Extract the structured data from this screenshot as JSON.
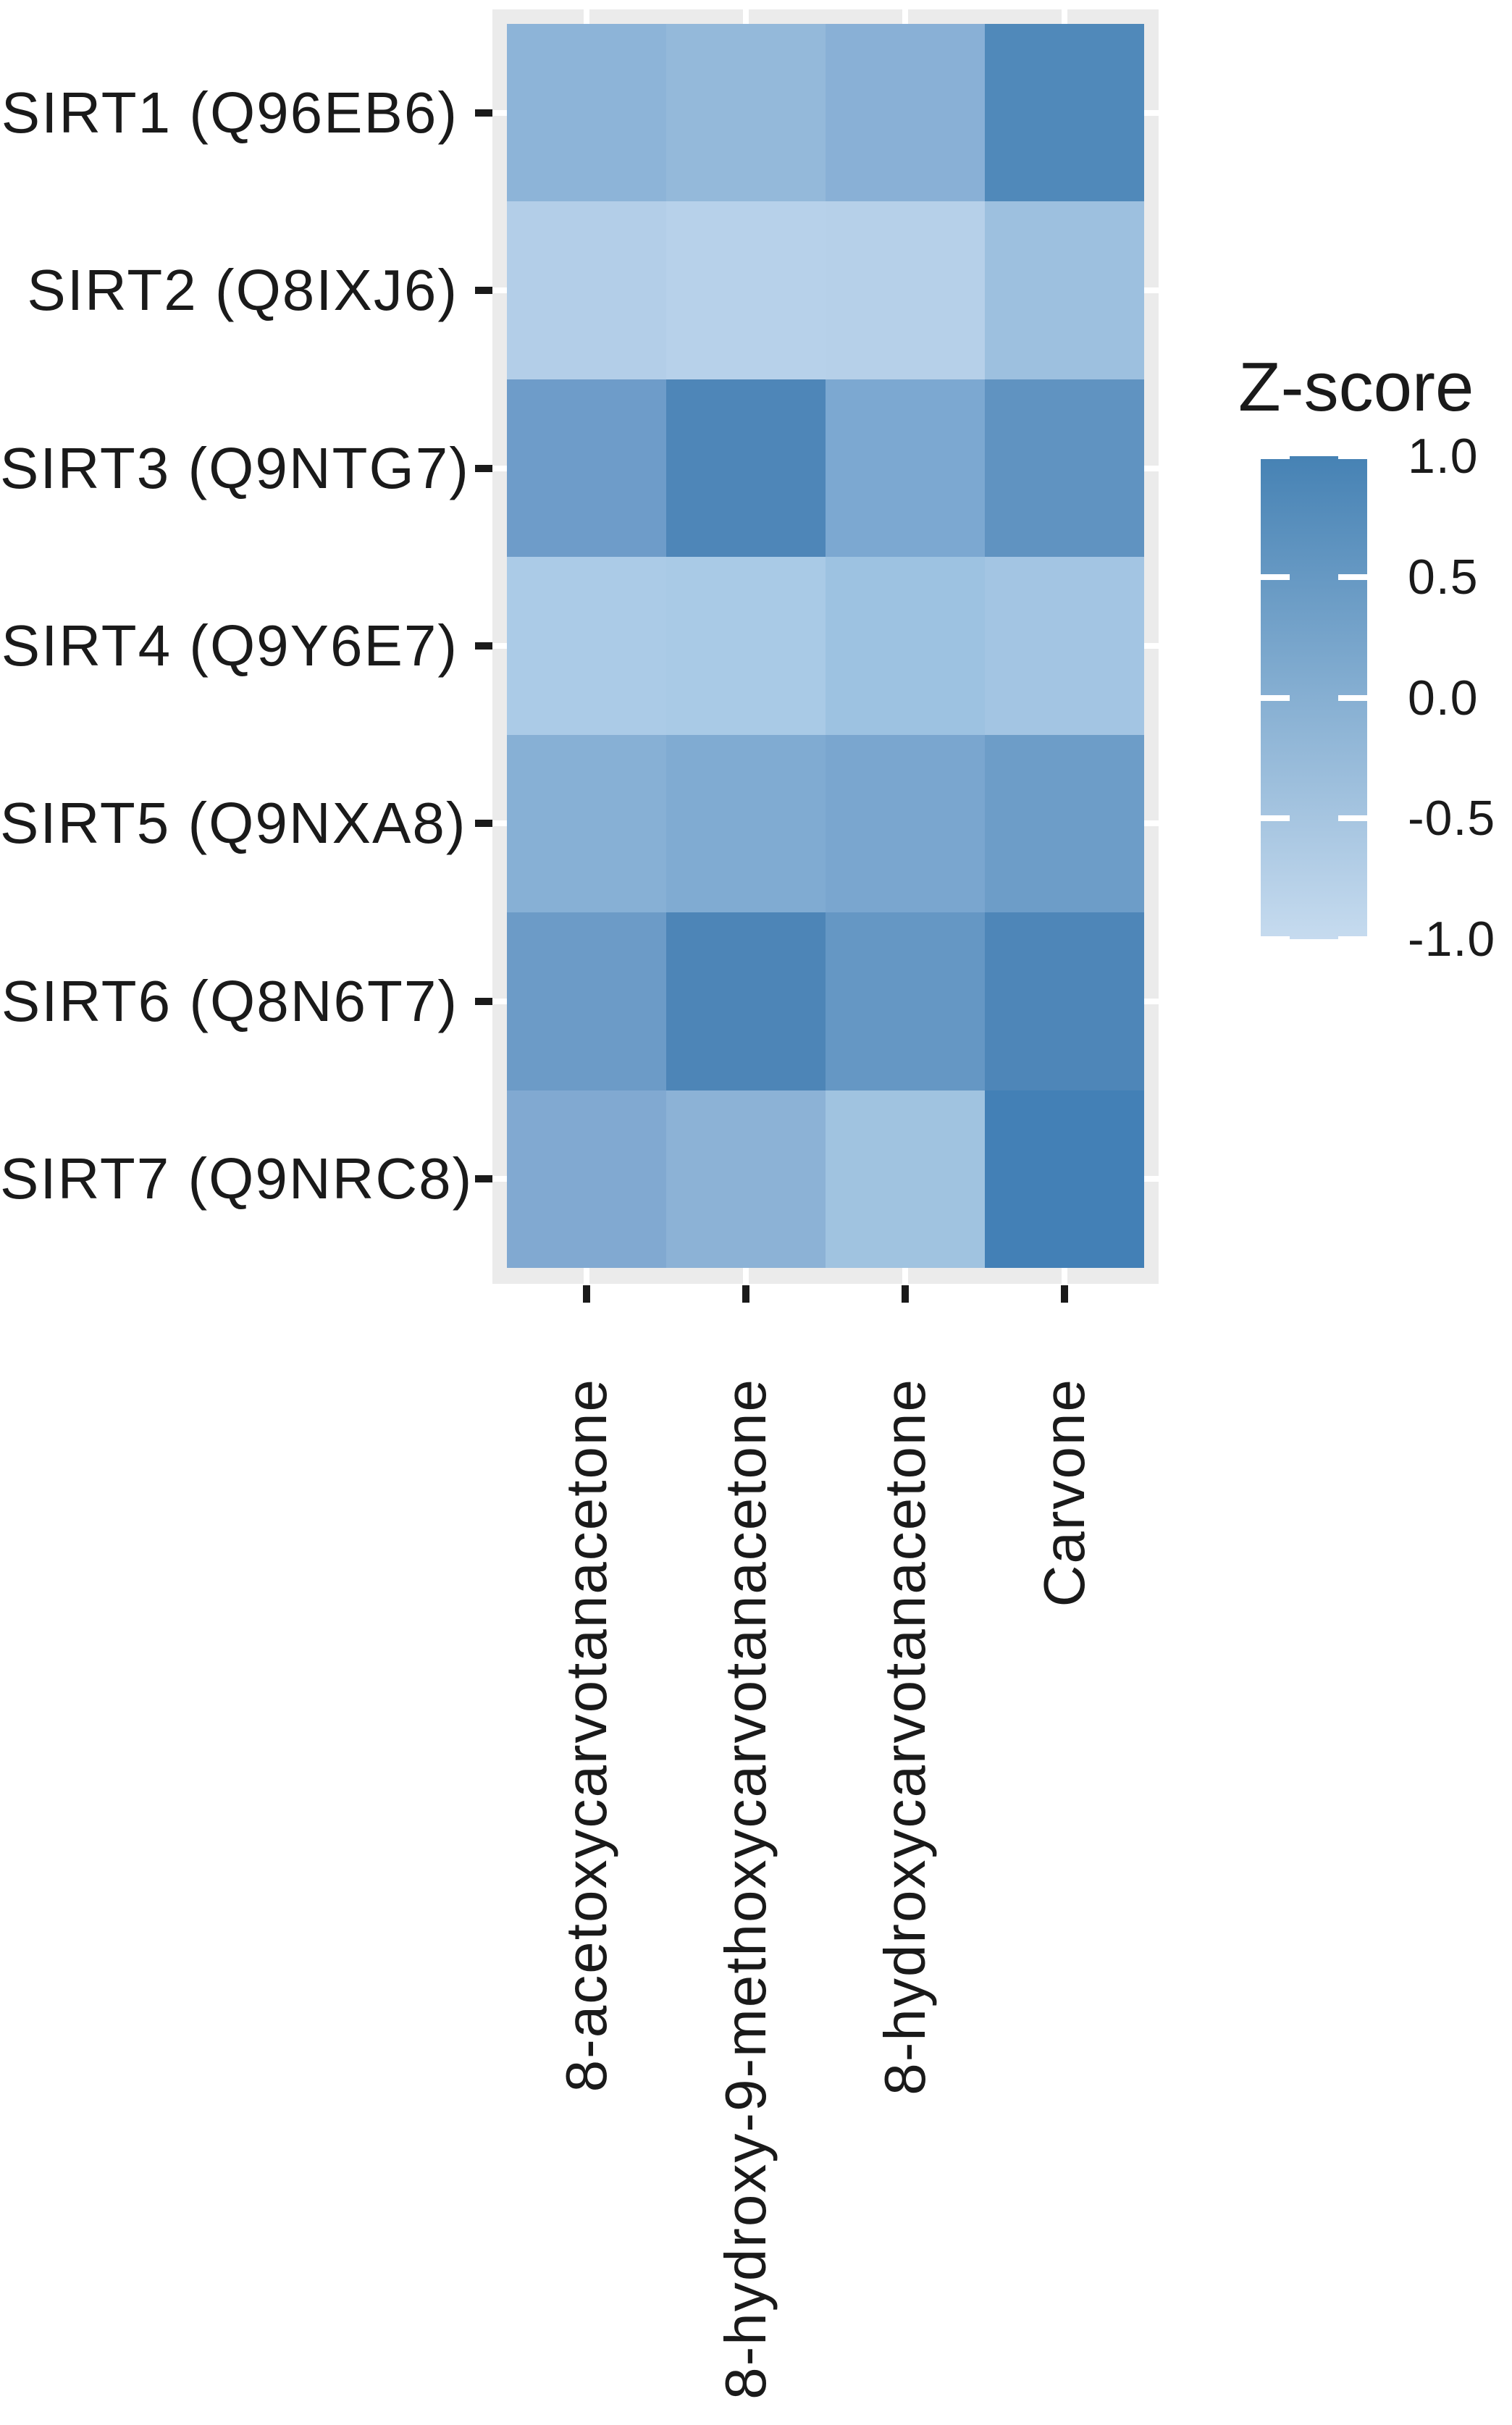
{
  "figure": {
    "background": "#FFFFFF",
    "description": "Heatmap of sirtuin protein Z-scores for four monoterpene compounds"
  },
  "y_axis": {
    "labels": [
      "SIRT1 (Q96EB6)",
      "SIRT2 (Q8IXJ6)",
      "SIRT3 (Q9NTG7)",
      "SIRT4 (Q9Y6E7)",
      "SIRT5 (Q9NXA8)",
      "SIRT6 (Q8N6T7)",
      "SIRT7 (Q9NRC8)"
    ]
  },
  "x_axis": {
    "labels": [
      "8-acetoxycarvotanacetone",
      "8-hydroxy-9-methoxycarvotanacetone",
      "8-hydroxycarvotanacetone",
      "Carvone"
    ]
  },
  "legend": {
    "title": "Z-score",
    "tick_labels": [
      "1.0",
      "0.5",
      "0.0",
      "-0.5",
      "-1.0"
    ]
  },
  "colors": {
    "panel_background": "#EBEBEB",
    "grid_line": "#FFFFFF",
    "axis_tick": "#1A1A1A",
    "text": "#1A1A1A",
    "scale_high": "#4682B4",
    "scale_low": "#C6DBEF"
  },
  "chart_data": {
    "type": "heatmap",
    "title": "",
    "legend_title": "Z-score",
    "rows": [
      "SIRT1 (Q96EB6)",
      "SIRT2 (Q8IXJ6)",
      "SIRT3 (Q9NTG7)",
      "SIRT4 (Q9Y6E7)",
      "SIRT5 (Q9NXA8)",
      "SIRT6 (Q8N6T7)",
      "SIRT7 (Q9NRC8)"
    ],
    "columns": [
      "8-acetoxycarvotanacetone",
      "8-hydroxy-9-methoxycarvotanacetone",
      "8-hydroxycarvotanacetone",
      "Carvone"
    ],
    "color_scale": {
      "high": {
        "value": 1.0,
        "color": "#4682B4"
      },
      "low": {
        "value": -1.0,
        "color": "#C6DBEF"
      }
    },
    "legend_ticks": [
      1.0,
      0.5,
      0.0,
      -0.5,
      -1.0
    ],
    "values": [
      [
        -0.14,
        -0.25,
        -0.06,
        0.85
      ],
      [
        -0.72,
        -0.78,
        -0.76,
        -0.37
      ],
      [
        0.38,
        0.87,
        0.16,
        0.57
      ],
      [
        -0.58,
        -0.54,
        -0.37,
        -0.46
      ],
      [
        -0.02,
        0.09,
        0.19,
        0.38
      ],
      [
        0.4,
        0.88,
        0.51,
        0.87
      ],
      [
        0.07,
        -0.1,
        -0.4,
        1.0
      ]
    ],
    "cell_colors": [
      [
        "#8DB4D8",
        "#94B9DA",
        "#89B0D6",
        "#5089BA"
      ],
      [
        "#B3CEE8",
        "#B7D1EA",
        "#B6D0E9",
        "#9DC0DF"
      ],
      [
        "#6E9CC9",
        "#4E86B8",
        "#7CA8D1",
        "#6093C1"
      ],
      [
        "#ABCBE7",
        "#A9CAE6",
        "#9DC2E1",
        "#A3C5E3"
      ],
      [
        "#87B0D5",
        "#80ABD2",
        "#7AA6CF",
        "#6D9DC8"
      ],
      [
        "#6C9BC7",
        "#4D85B7",
        "#6597C4",
        "#4E86B8"
      ],
      [
        "#81A9D1",
        "#8CB2D6",
        "#A0C3E0",
        "#4380B6"
      ]
    ],
    "layout_hints": {
      "legend_position": "right",
      "grid": "white gridlines at category centers, visible in panel margins",
      "x_label_rotation_deg": 90
    }
  }
}
